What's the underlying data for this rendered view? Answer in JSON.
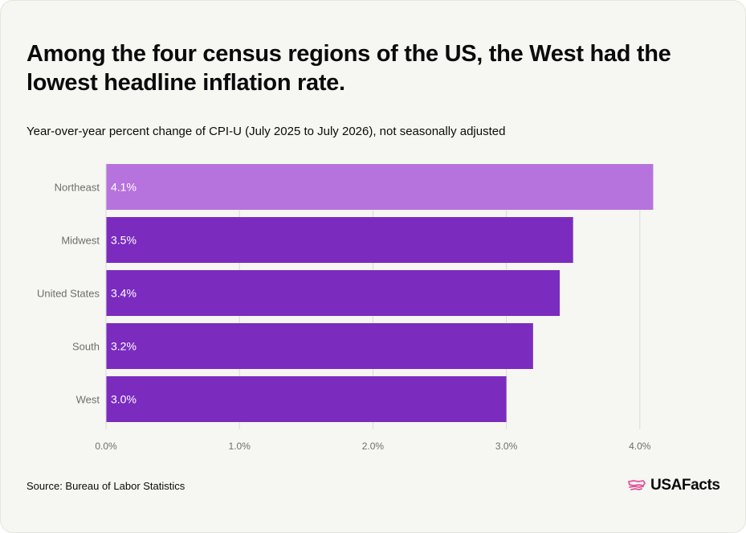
{
  "header": {
    "title": "Among the four census regions of the US, the West had the lowest headline inflation rate.",
    "subtitle": "Year-over-year percent change of CPI-U (July 2025 to July 2026), not seasonally adjusted"
  },
  "footer": {
    "source": "Source: Bureau of Labor Statistics",
    "brand": "USAFacts",
    "brand_icon": "us-map-flag-icon"
  },
  "colors": {
    "highlight_bar": "#b673dd",
    "bar": "#7b2cbf",
    "bar_label": "#ffffff",
    "axis_text": "#6e6e6e",
    "grid": "#dcdcd6",
    "logo_accent": "#e0569a"
  },
  "chart_data": {
    "type": "bar",
    "orientation": "horizontal",
    "categories": [
      "Northeast",
      "Midwest",
      "United States",
      "South",
      "West"
    ],
    "values": [
      4.1,
      3.5,
      3.4,
      3.2,
      3.0
    ],
    "value_labels": [
      "4.1%",
      "3.5%",
      "3.4%",
      "3.2%",
      "3.0%"
    ],
    "highlighted_category": "Northeast",
    "x_ticks": [
      0,
      1,
      2,
      3,
      4
    ],
    "x_tick_labels": [
      "0.0%",
      "1.0%",
      "2.0%",
      "3.0%",
      "4.0%"
    ],
    "xlim": [
      0,
      4.2
    ],
    "grid": true
  }
}
